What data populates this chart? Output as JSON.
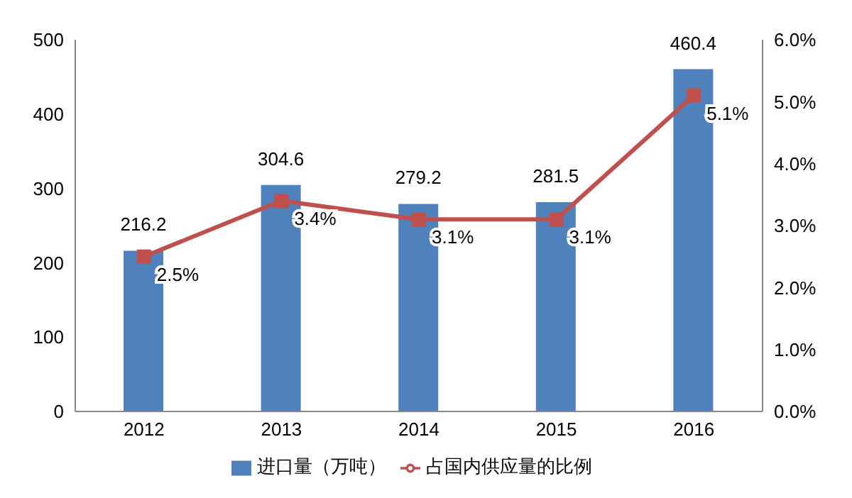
{
  "chart_data": {
    "type": "bar",
    "categories": [
      "2012",
      "2013",
      "2014",
      "2015",
      "2016"
    ],
    "series": [
      {
        "name": "进口量（万吨）",
        "color": "#4f81bd",
        "values": [
          216.2,
          304.6,
          279.2,
          281.5,
          460.4
        ]
      },
      {
        "name": "占国内供应量的比例",
        "type": "line",
        "axis": "y2",
        "color": "#c0504d",
        "values": [
          2.5,
          3.4,
          3.1,
          3.1,
          5.1
        ],
        "value_labels": [
          "2.5%",
          "3.4%",
          "3.1%",
          "3.1%",
          "5.1%"
        ]
      }
    ],
    "ylim": [
      0,
      500
    ],
    "yticks": [
      0,
      100,
      200,
      300,
      400,
      500
    ],
    "y2lim": [
      0,
      6
    ],
    "y2ticks": [
      {
        "value": 0,
        "label": "0.0%"
      },
      {
        "value": 1,
        "label": "1.0%"
      },
      {
        "value": 2,
        "label": "2.0%"
      },
      {
        "value": 3,
        "label": "3.0%"
      },
      {
        "value": 4,
        "label": "4.0%"
      },
      {
        "value": 5,
        "label": "5.0%"
      },
      {
        "value": 6,
        "label": "6.0%"
      }
    ],
    "data_labels": true,
    "marker": "square",
    "line_style": "solid",
    "grid": false,
    "legend": "bottom"
  }
}
